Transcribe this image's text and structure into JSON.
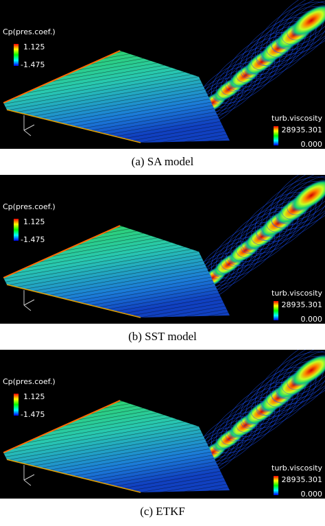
{
  "panels": [
    {
      "cp_label": "Cp(pres.coef.)",
      "cp_max": "1.125",
      "cp_min": "-1.475",
      "turb_label": "turb.viscosity",
      "turb_max": "28935.301",
      "turb_min": "0.000",
      "caption": "(a) SA model"
    },
    {
      "cp_label": "Cp(pres.coef.)",
      "cp_max": "1.125",
      "cp_min": "-1.475",
      "turb_label": "turb.viscosity",
      "turb_max": "28935.301",
      "turb_min": "0.000",
      "caption": "(b) SST model"
    },
    {
      "cp_label": "Cp(pres.coef.)",
      "cp_max": "1.125",
      "cp_min": "-1.475",
      "turb_label": "turb.viscosity",
      "turb_max": "28935.301",
      "turb_min": "0.000",
      "caption": "(c) ETKF"
    }
  ]
}
